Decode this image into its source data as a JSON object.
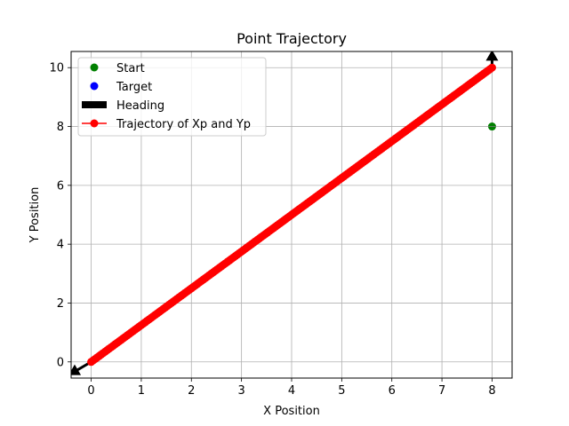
{
  "chart_data": {
    "type": "line",
    "title": "Point Trajectory",
    "xlabel": "X Position",
    "ylabel": "Y Position",
    "xlim": [
      -0.4,
      8.4
    ],
    "ylim": [
      -0.55,
      10.55
    ],
    "xticks": [
      0,
      1,
      2,
      3,
      4,
      5,
      6,
      7,
      8
    ],
    "yticks": [
      0,
      2,
      4,
      6,
      8,
      10
    ],
    "grid": true,
    "legend_position": "top-left",
    "series": [
      {
        "name": "Start",
        "kind": "scatter",
        "color": "#008000",
        "points": [
          [
            8,
            8
          ]
        ]
      },
      {
        "name": "Target",
        "kind": "scatter",
        "color": "#0000ff",
        "points": []
      },
      {
        "name": "Heading",
        "kind": "arrow",
        "color": "#000000",
        "arrows": [
          {
            "from": [
              8,
              10
            ],
            "to": [
              8,
              10.6
            ]
          },
          {
            "from": [
              0,
              0
            ],
            "to": [
              -0.45,
              -0.45
            ]
          }
        ]
      },
      {
        "name": "Trajectory of Xp and Yp",
        "kind": "line-marker",
        "color": "#ff0000",
        "start": [
          0,
          0
        ],
        "end": [
          8,
          10
        ],
        "n_points": 200
      }
    ]
  }
}
